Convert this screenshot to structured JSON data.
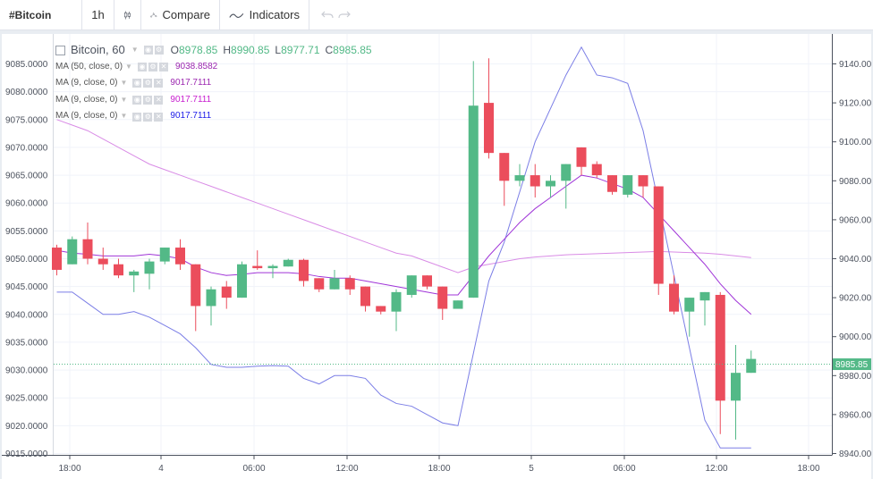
{
  "toolbar": {
    "symbol": "#Bitcoin",
    "interval": "1h",
    "compare_label": "Compare",
    "indicators_label": "Indicators"
  },
  "legend": {
    "symbol": "Bitcoin, 60",
    "o_label": "O",
    "o": "8978.85",
    "h_label": "H",
    "h": "8990.85",
    "l_label": "L",
    "l": "8977.71",
    "c_label": "C",
    "c": "8985.85",
    "ma": [
      {
        "label": "MA (50, close, 0)",
        "value": "9038.8582",
        "color": "#9c27b0"
      },
      {
        "label": "MA (9, close, 0)",
        "value": "9017.7111",
        "color": "#9c27b0"
      },
      {
        "label": "MA (9, close, 0)",
        "value": "9017.7111",
        "color": "#c71ccf"
      },
      {
        "label": "MA (9, close, 0)",
        "value": "9017.7111",
        "color": "#1a1ae8"
      }
    ]
  },
  "colors": {
    "up": "#53b987",
    "down": "#eb4d5c",
    "ma50": "#d98ce6",
    "ma9": "#a035d8",
    "ma9b": "#7b7ee6",
    "price_line": "#53b987",
    "grid": "#f0f3fa"
  },
  "chart_data": {
    "type": "candlestick",
    "left_axis": {
      "ticks": [
        "9085.0000",
        "9080.0000",
        "9075.0000",
        "9070.0000",
        "9065.0000",
        "9060.0000",
        "9055.0000",
        "9050.0000",
        "9045.0000",
        "9040.0000",
        "9035.0000",
        "9030.0000",
        "9025.0000",
        "9020.0000",
        "9015.0000"
      ],
      "range": [
        9015,
        9085
      ]
    },
    "right_axis": {
      "ticks": [
        "9140.00",
        "9120.00",
        "9100.00",
        "9080.00",
        "9060.00",
        "9040.00",
        "9020.00",
        "9000.00",
        "8980.00",
        "8960.00",
        "8940.00"
      ],
      "range": [
        8940,
        9140
      ]
    },
    "x_ticks": [
      "18:00",
      "4",
      "06:00",
      "12:00",
      "18:00",
      "5",
      "06:00",
      "12:00",
      "18:00"
    ],
    "price_label": "8985.85",
    "candles": [
      {
        "o": 9052.0,
        "h": 9052.5,
        "l": 9047.0,
        "c": 9048.0
      },
      {
        "o": 9049.0,
        "h": 9054.0,
        "l": 9049.0,
        "c": 9053.5
      },
      {
        "o": 9053.5,
        "h": 9056.5,
        "l": 9049.0,
        "c": 9050.0
      },
      {
        "o": 9050.0,
        "h": 9052.0,
        "l": 9048.0,
        "c": 9049.0
      },
      {
        "o": 9049.0,
        "h": 9050.0,
        "l": 9046.5,
        "c": 9047.0
      },
      {
        "o": 9047.0,
        "h": 9048.0,
        "l": 9044.0,
        "c": 9047.7
      },
      {
        "o": 9047.3,
        "h": 9050.0,
        "l": 9044.5,
        "c": 9049.5
      },
      {
        "o": 9049.5,
        "h": 9052.0,
        "l": 9049.0,
        "c": 9052.0
      },
      {
        "o": 9052.0,
        "h": 9053.5,
        "l": 9048.0,
        "c": 9049.0
      },
      {
        "o": 9049.0,
        "h": 9049.0,
        "l": 9037.0,
        "c": 9041.5
      },
      {
        "o": 9041.5,
        "h": 9045.0,
        "l": 9038.0,
        "c": 9044.5
      },
      {
        "o": 9045.0,
        "h": 9046.0,
        "l": 9041.0,
        "c": 9043.0
      },
      {
        "o": 9043.0,
        "h": 9049.5,
        "l": 9043.0,
        "c": 9049.0
      },
      {
        "o": 9048.7,
        "h": 9051.5,
        "l": 9048.0,
        "c": 9048.3
      },
      {
        "o": 9048.3,
        "h": 9049.0,
        "l": 9046.5,
        "c": 9048.7
      },
      {
        "o": 9048.6,
        "h": 9050.0,
        "l": 9048.6,
        "c": 9049.8
      },
      {
        "o": 9049.8,
        "h": 9050.0,
        "l": 9045.0,
        "c": 9046.0
      },
      {
        "o": 9046.5,
        "h": 9046.5,
        "l": 9044.0,
        "c": 9044.5
      },
      {
        "o": 9044.5,
        "h": 9048.0,
        "l": 9044.5,
        "c": 9046.5
      },
      {
        "o": 9046.5,
        "h": 9047.0,
        "l": 9043.5,
        "c": 9044.5
      },
      {
        "o": 9045.0,
        "h": 9045.0,
        "l": 9040.5,
        "c": 9041.5
      },
      {
        "o": 9041.5,
        "h": 9041.5,
        "l": 9040.0,
        "c": 9040.5
      },
      {
        "o": 9040.5,
        "h": 9044.5,
        "l": 9037.0,
        "c": 9044.0
      },
      {
        "o": 9043.5,
        "h": 9047.0,
        "l": 9043.0,
        "c": 9047.0
      },
      {
        "o": 9047.0,
        "h": 9047.0,
        "l": 9044.5,
        "c": 9045.0
      },
      {
        "o": 9045.0,
        "h": 9045.0,
        "l": 9039.0,
        "c": 9041.0
      },
      {
        "o": 9041.0,
        "h": 9042.5,
        "l": 9041.0,
        "c": 9042.5
      },
      {
        "o": 9043.0,
        "h": 9085.5,
        "l": 9043.0,
        "c": 9077.5
      },
      {
        "o": 9078.0,
        "h": 9086.0,
        "l": 9068.0,
        "c": 9069.0
      },
      {
        "o": 9069.0,
        "h": 9069.0,
        "l": 9059.5,
        "c": 9064.0
      },
      {
        "o": 9064.0,
        "h": 9067.0,
        "l": 9063.0,
        "c": 9065.0
      },
      {
        "o": 9065.0,
        "h": 9067.0,
        "l": 9061.0,
        "c": 9063.0
      },
      {
        "o": 9063.0,
        "h": 9065.0,
        "l": 9061.0,
        "c": 9064.0
      },
      {
        "o": 9064.0,
        "h": 9067.0,
        "l": 9059.0,
        "c": 9067.0
      },
      {
        "o": 9070.0,
        "h": 9070.0,
        "l": 9065.0,
        "c": 9066.5
      },
      {
        "o": 9067.0,
        "h": 9067.5,
        "l": 9064.5,
        "c": 9065.0
      },
      {
        "o": 9065.0,
        "h": 9065.0,
        "l": 9061.5,
        "c": 9062.0
      },
      {
        "o": 9061.5,
        "h": 9065.0,
        "l": 9061.0,
        "c": 9065.0
      },
      {
        "o": 9065.0,
        "h": 9065.0,
        "l": 9061.0,
        "c": 9063.0
      },
      {
        "o": 9063.0,
        "h": 9063.0,
        "l": 9043.5,
        "c": 9045.5
      },
      {
        "o": 9045.5,
        "h": 9047.0,
        "l": 9040.0,
        "c": 9040.5
      },
      {
        "o": 9040.5,
        "h": 9043.0,
        "l": 9036.0,
        "c": 9043.0
      },
      {
        "o": 9042.5,
        "h": 9044.0,
        "l": 9038.0,
        "c": 9044.0
      },
      {
        "o": 9043.5,
        "h": 9044.0,
        "l": 9018.5,
        "c": 9024.5
      },
      {
        "o": 9024.5,
        "h": 9034.5,
        "l": 9017.5,
        "c": 9029.5
      },
      {
        "o": 9029.5,
        "h": 9033.5,
        "l": 9029.5,
        "c": 9032.0
      }
    ],
    "ma50": [
      9075.0,
      9074.0,
      9073.0,
      9071.5,
      9070.0,
      9068.5,
      9067.0,
      9066.0,
      9065.0,
      9064.0,
      9063.0,
      9062.0,
      9061.0,
      9060.0,
      9059.0,
      9058.0,
      9057.0,
      9056.0,
      9055.0,
      9054.0,
      9053.0,
      9052.0,
      9051.0,
      9050.5,
      9049.5,
      9048.5,
      9047.5,
      9048.5,
      9049.0,
      9049.5,
      9050.0,
      9050.3,
      9050.5,
      9050.7,
      9050.8,
      9050.9,
      9051.0,
      9051.1,
      9051.2,
      9051.3,
      9051.2,
      9051.1,
      9051.0,
      9050.8,
      9050.5,
      9050.2
    ],
    "ma9": [
      9051.5,
      9051.0,
      9050.8,
      9050.5,
      9050.5,
      9050.5,
      9050.8,
      9050.5,
      9050.0,
      9048.5,
      9047.5,
      9047.0,
      9047.2,
      9047.5,
      9047.5,
      9047.5,
      9047.3,
      9046.8,
      9046.5,
      9046.5,
      9046.0,
      9045.5,
      9045.0,
      9044.5,
      9044.0,
      9043.5,
      9043.5,
      9047.0,
      9050.5,
      9053.5,
      9056.5,
      9059.0,
      9061.0,
      9063.0,
      9065.0,
      9064.5,
      9063.5,
      9062.5,
      9061.0,
      9058.0,
      9055.0,
      9052.0,
      9049.0,
      9045.5,
      9042.5,
      9040.0
    ],
    "ma9b": [
      9044.0,
      9044.0,
      9042.0,
      9040.0,
      9040.0,
      9040.5,
      9039.5,
      9038.0,
      9036.5,
      9034.0,
      9031.0,
      9030.5,
      9030.5,
      9030.7,
      9030.8,
      9030.7,
      9028.5,
      9027.5,
      9029.0,
      9029.0,
      9028.5,
      9025.5,
      9024.0,
      9023.5,
      9022.0,
      9020.5,
      9020.0,
      9033.0,
      9046.0,
      9053.0,
      9062.0,
      9071.0,
      9077.0,
      9083.0,
      9088.0,
      9083.0,
      9082.5,
      9081.5,
      9073.0,
      9060.0,
      9047.0,
      9034.0,
      9021.0,
      9016.0,
      9016.0,
      9016.0
    ]
  }
}
